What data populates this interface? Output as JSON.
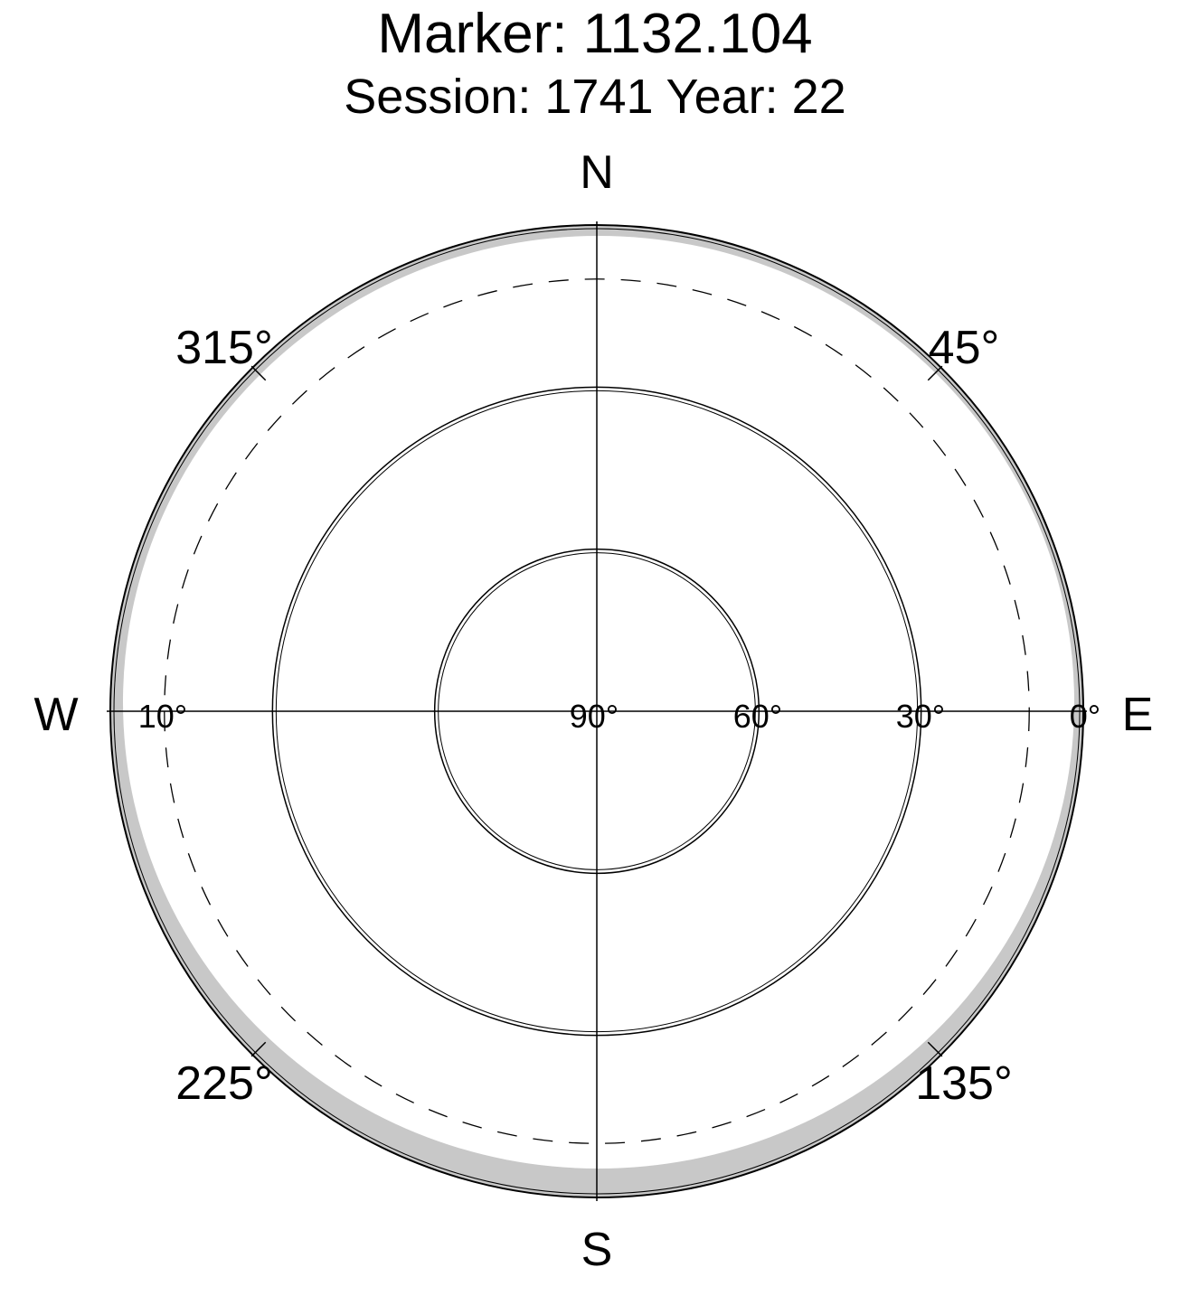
{
  "chart_data": {
    "type": "scatter",
    "projection": "polar sky plot",
    "title": "Marker: 1132.104",
    "subtitle": "Session: 1741 Year: 22",
    "compass_labels": {
      "north": "N",
      "south": "S",
      "east": "E",
      "west": "W"
    },
    "azimuth_labels": [
      "45°",
      "135°",
      "225°",
      "315°"
    ],
    "azimuth_label_values": [
      45,
      135,
      225,
      315
    ],
    "elevation_labels": [
      "0°",
      "30°",
      "60°",
      "90°",
      "10°"
    ],
    "elevation_rings": [
      0,
      30,
      60,
      90
    ],
    "cutoff_elevation": 10,
    "elevation_mask_ring": 7,
    "series": [],
    "colors": {
      "above_cutoff": "#00ff00",
      "below_cutoff": "#ff0000",
      "horizon_mask": "#c8c8c8",
      "grid": "#000000"
    },
    "tracks_note": "",
    "grid": true,
    "legend": "none"
  }
}
